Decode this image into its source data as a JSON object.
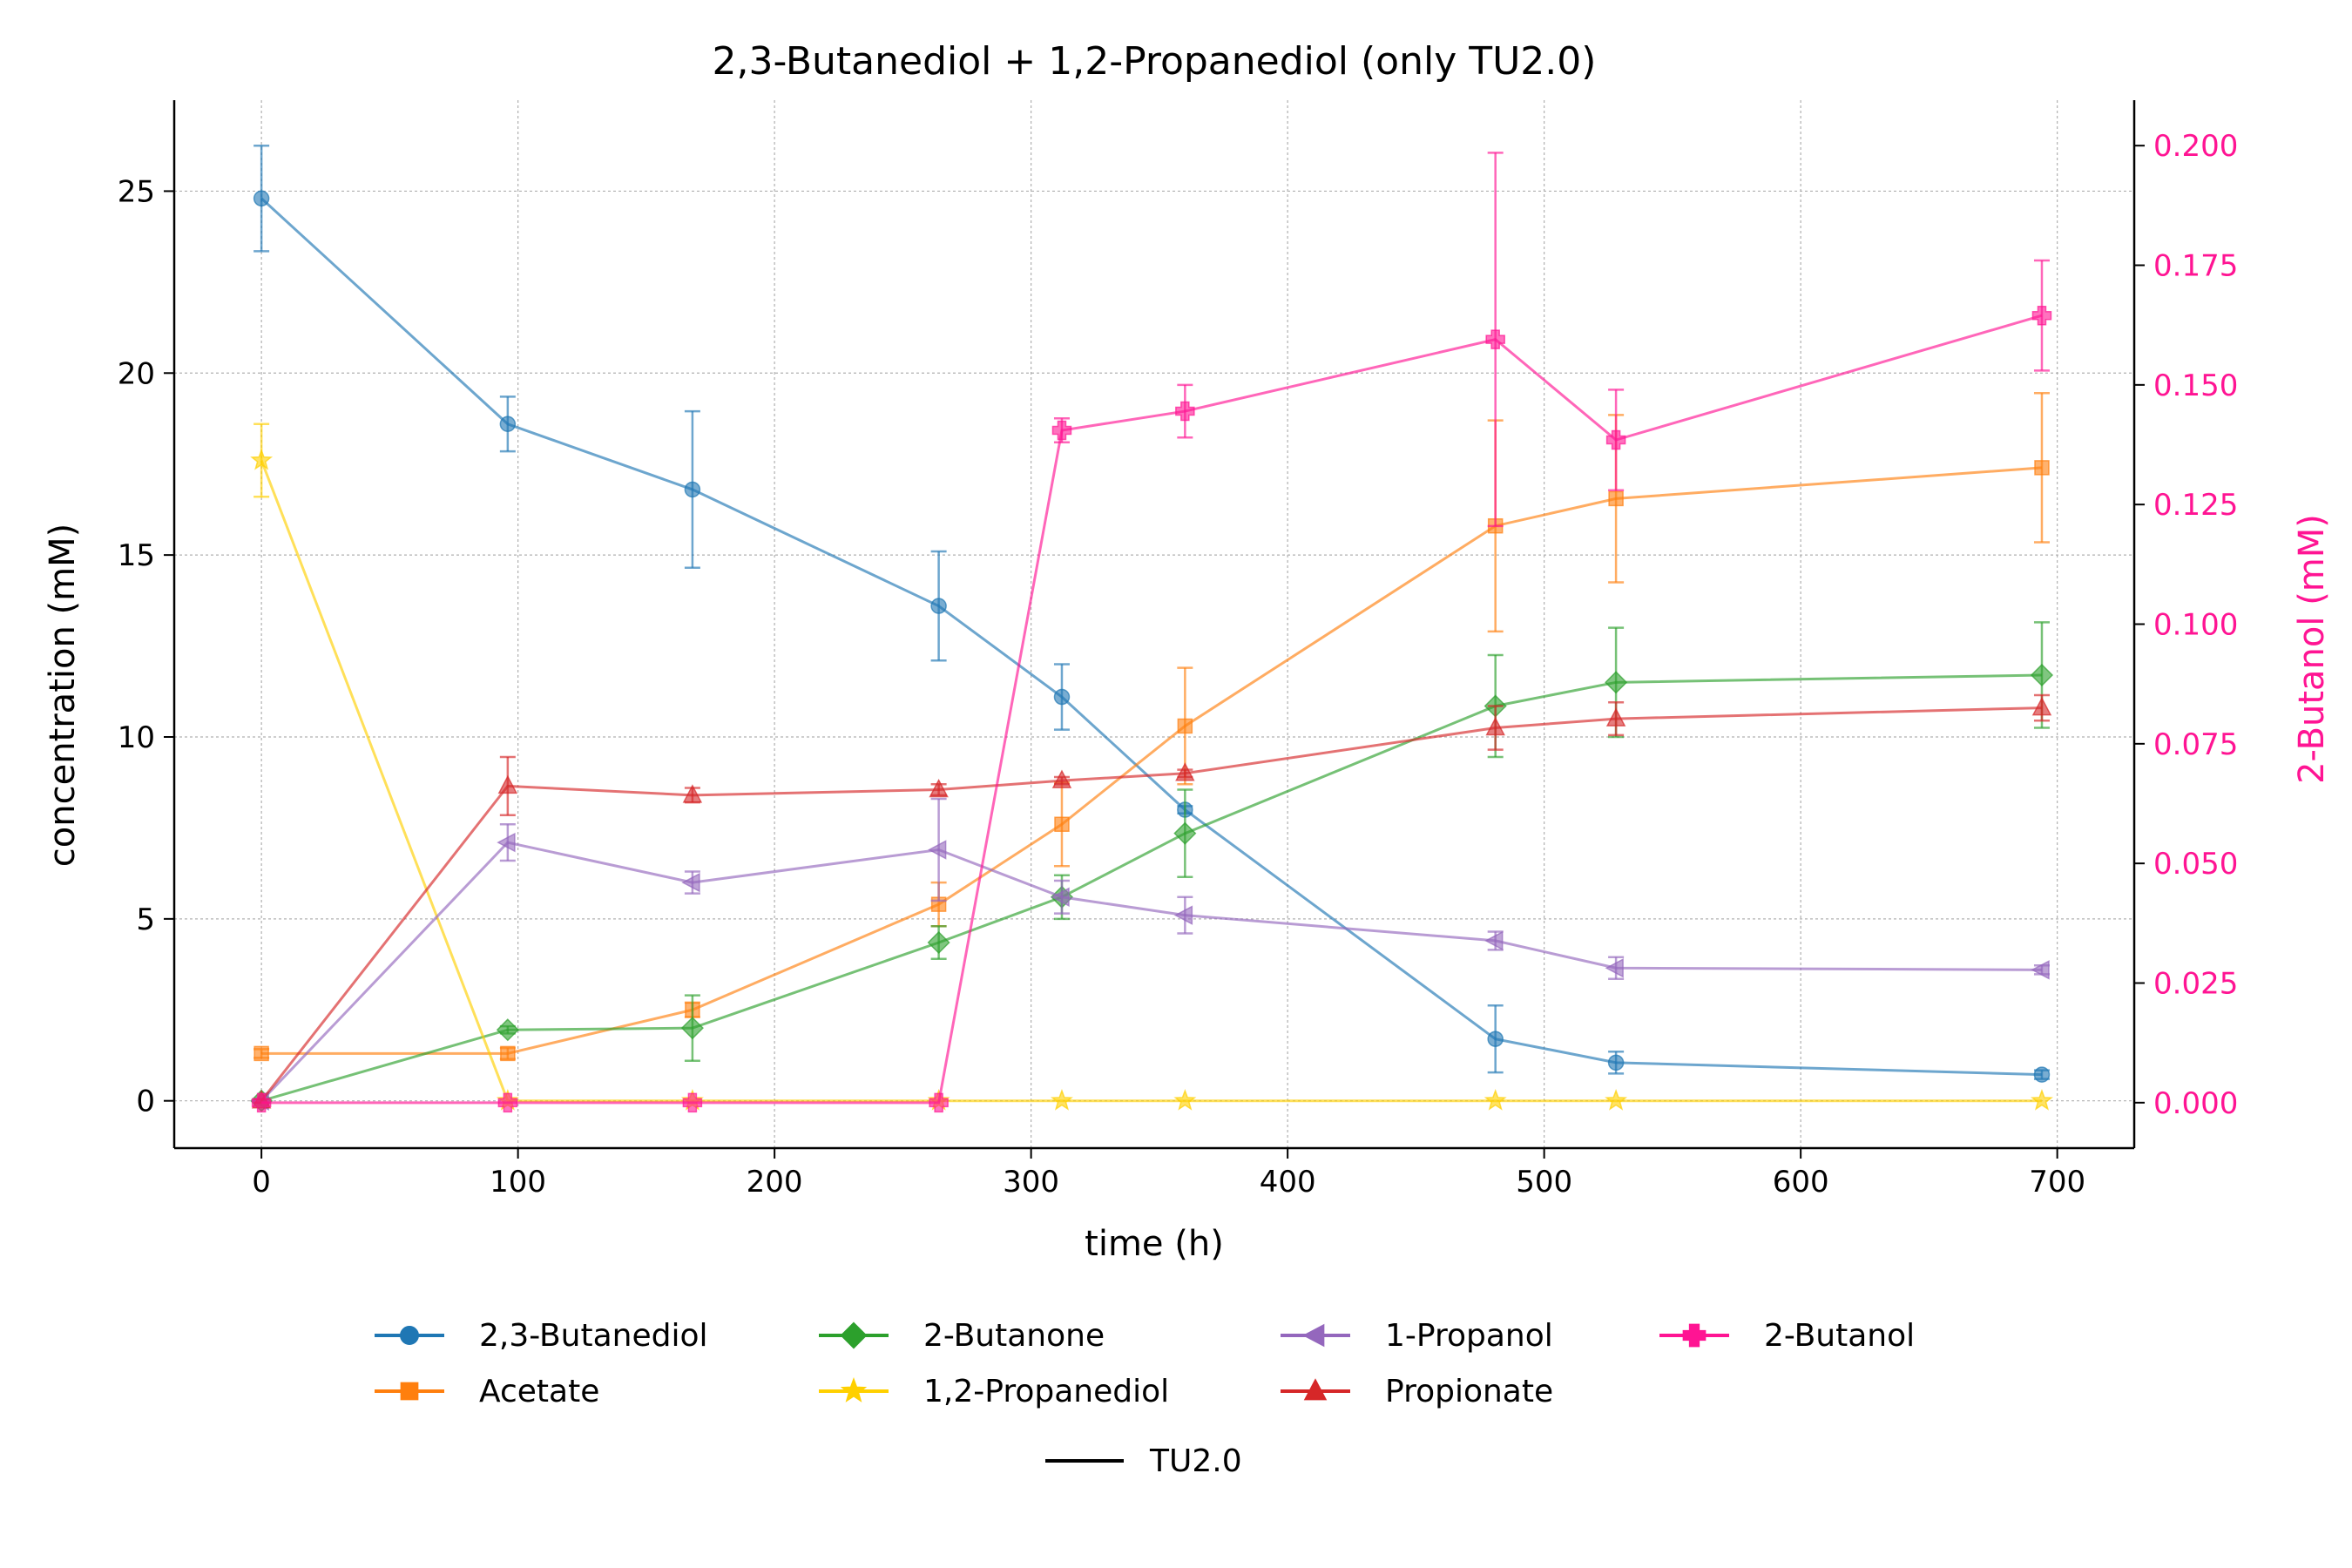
{
  "chart_data": {
    "type": "line",
    "title": "2,3-Butanediol + 1,2-Propanediol (only TU2.0)",
    "xlabel": "time (h)",
    "ylabel": "concentration (mM)",
    "y2label": "2-Butanol (mM)",
    "xlim": [
      -34,
      730
    ],
    "ylim": [
      -1.3,
      27.5
    ],
    "y2lim": [
      -0.0095,
      0.2095
    ],
    "xticks": [
      0,
      100,
      200,
      300,
      400,
      500,
      600,
      700
    ],
    "yticks": [
      0,
      5,
      10,
      15,
      20,
      25
    ],
    "y2ticks": [
      0.0,
      0.025,
      0.05,
      0.075,
      0.1,
      0.125,
      0.15,
      0.175,
      0.2
    ],
    "grid": true,
    "legend_position": "bottom-center",
    "colors": {
      "secondary_axis": "#ff1493"
    },
    "series": [
      {
        "name": "2,3-Butanediol",
        "axis": "left",
        "color": "#1f77b4",
        "marker": "circle",
        "x": [
          0,
          96,
          168,
          264,
          312,
          360,
          481,
          528,
          694
        ],
        "y": [
          24.8,
          18.6,
          16.8,
          13.6,
          11.1,
          8.0,
          1.7,
          1.05,
          0.72
        ],
        "err": [
          1.45,
          0.75,
          2.15,
          1.5,
          0.9,
          0.1,
          0.92,
          0.3,
          0.12
        ]
      },
      {
        "name": "Acetate",
        "axis": "left",
        "color": "#ff7f0e",
        "marker": "square",
        "x": [
          0,
          96,
          168,
          264,
          312,
          360,
          481,
          528,
          694
        ],
        "y": [
          1.3,
          1.3,
          2.5,
          5.4,
          7.6,
          10.3,
          15.8,
          16.55,
          17.4
        ],
        "err": [
          0.12,
          0.15,
          0.2,
          0.6,
          1.15,
          1.6,
          2.9,
          2.3,
          2.05
        ]
      },
      {
        "name": "2-Butanone",
        "axis": "left",
        "color": "#2ca02c",
        "marker": "diamond",
        "x": [
          0,
          96,
          168,
          264,
          312,
          360,
          481,
          528,
          694
        ],
        "y": [
          0.0,
          1.95,
          2.0,
          4.35,
          5.6,
          7.35,
          10.85,
          11.5,
          11.7
        ],
        "err": [
          0.05,
          0.1,
          0.9,
          0.45,
          0.6,
          1.2,
          1.4,
          1.5,
          1.45
        ]
      },
      {
        "name": "1,2-Propanediol",
        "axis": "left",
        "color": "#ffd000",
        "marker": "star",
        "x": [
          0,
          96,
          168,
          264,
          312,
          360,
          481,
          528,
          694
        ],
        "y": [
          17.6,
          0.0,
          0.0,
          0.0,
          0.0,
          0.0,
          0.0,
          0.0,
          0.0
        ],
        "err": [
          1.0,
          0,
          0,
          0,
          0,
          0,
          0,
          0,
          0
        ]
      },
      {
        "name": "1-Propanol",
        "axis": "left",
        "color": "#9467bd",
        "marker": "triangle-left",
        "x": [
          0,
          96,
          168,
          264,
          312,
          360,
          481,
          528,
          694
        ],
        "y": [
          0.0,
          7.1,
          6.0,
          6.9,
          5.6,
          5.1,
          4.4,
          3.65,
          3.6
        ],
        "err": [
          0.05,
          0.5,
          0.3,
          1.4,
          0.45,
          0.5,
          0.25,
          0.3,
          0.12
        ]
      },
      {
        "name": "Propionate",
        "axis": "left",
        "color": "#d62728",
        "marker": "triangle-up",
        "x": [
          0,
          96,
          168,
          264,
          312,
          360,
          481,
          528,
          694
        ],
        "y": [
          0.0,
          8.65,
          8.4,
          8.55,
          8.8,
          9.0,
          10.25,
          10.5,
          10.8
        ],
        "err": [
          0.05,
          0.8,
          0.2,
          0.15,
          0.1,
          0.1,
          0.6,
          0.45,
          0.35
        ]
      },
      {
        "name": "2-Butanol",
        "axis": "right",
        "color": "#ff1493",
        "marker": "plus",
        "x": [
          0,
          96,
          168,
          264,
          312,
          360,
          481,
          528,
          694
        ],
        "y": [
          0.0,
          0.0,
          0.0,
          0.0,
          0.1405,
          0.1445,
          0.1595,
          0.1385,
          0.1645
        ],
        "err": [
          0,
          0,
          0,
          0,
          0.0025,
          0.0055,
          0.039,
          0.0105,
          0.0115
        ]
      }
    ],
    "legend_extra": {
      "label": "TU2.0",
      "color": "#000000"
    }
  }
}
